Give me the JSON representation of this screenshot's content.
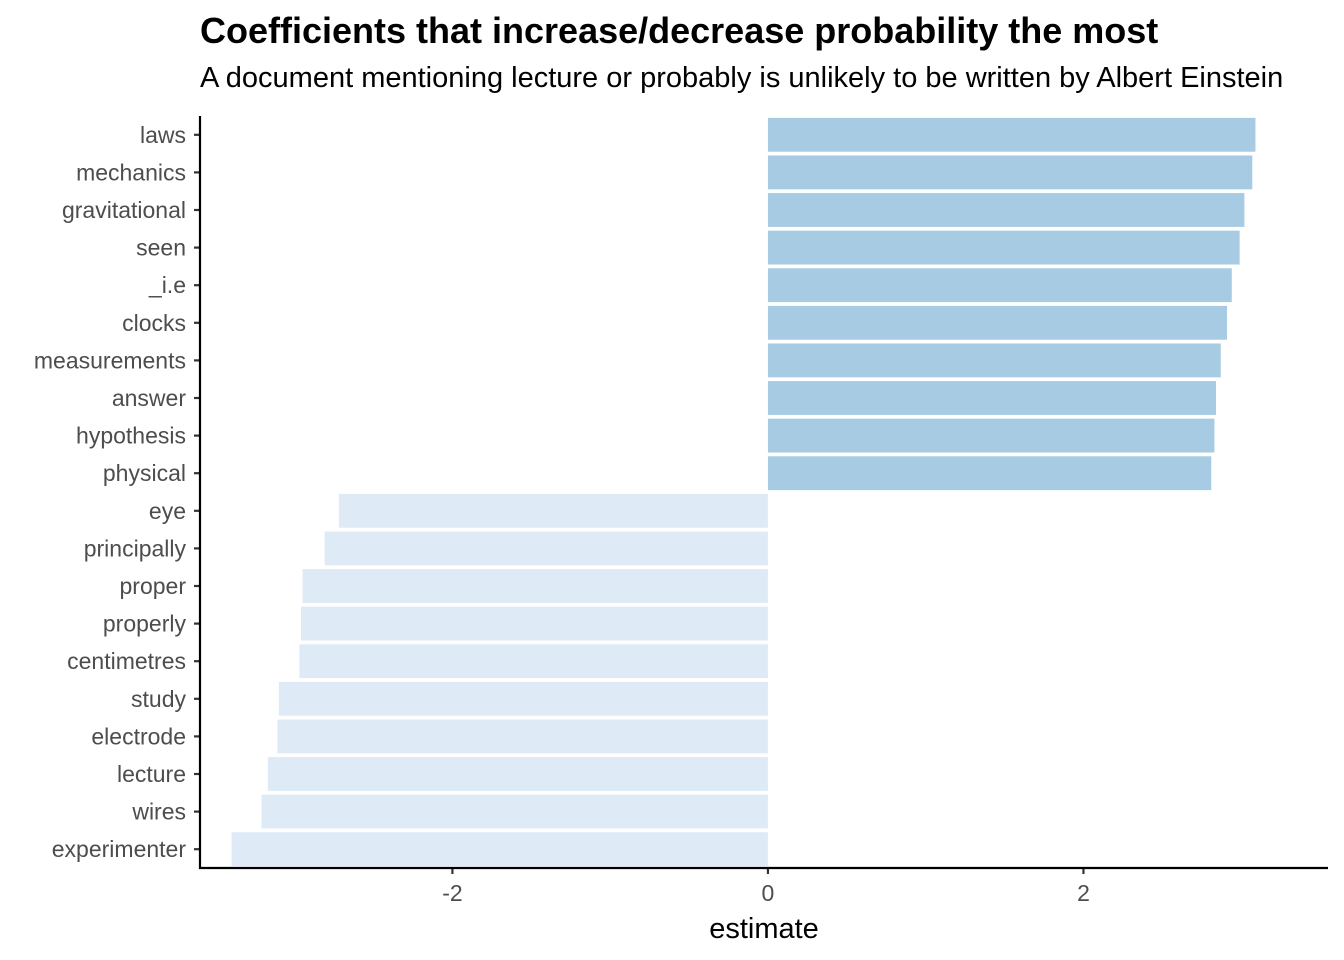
{
  "chart_data": {
    "type": "bar",
    "orientation": "horizontal",
    "title": "Coefficients that increase/decrease probability the most",
    "subtitle": "A document mentioning lecture or probably is unlikely to be written by Albert Einstein",
    "xlabel": "estimate",
    "ylabel": "",
    "xlim": [
      -3.6,
      3.55
    ],
    "x_ticks": [
      -2,
      0,
      2
    ],
    "x_tick_labels": [
      "-2",
      "0",
      "2"
    ],
    "grid": false,
    "legend": "none",
    "categories": [
      "laws",
      "mechanics",
      "gravitational",
      "seen",
      "_i.e",
      "clocks",
      "measurements",
      "answer",
      "hypothesis",
      "physical",
      "eye",
      "principally",
      "proper",
      "properly",
      "centimetres",
      "study",
      "electrode",
      "lecture",
      "wires",
      "experimenter"
    ],
    "values": [
      3.09,
      3.07,
      3.02,
      2.99,
      2.94,
      2.91,
      2.87,
      2.84,
      2.83,
      2.81,
      -2.72,
      -2.81,
      -2.95,
      -2.96,
      -2.97,
      -3.1,
      -3.11,
      -3.17,
      -3.21,
      -3.4
    ],
    "colors": {
      "positive": "#a6cbe3",
      "negative": "#deebf7"
    }
  }
}
